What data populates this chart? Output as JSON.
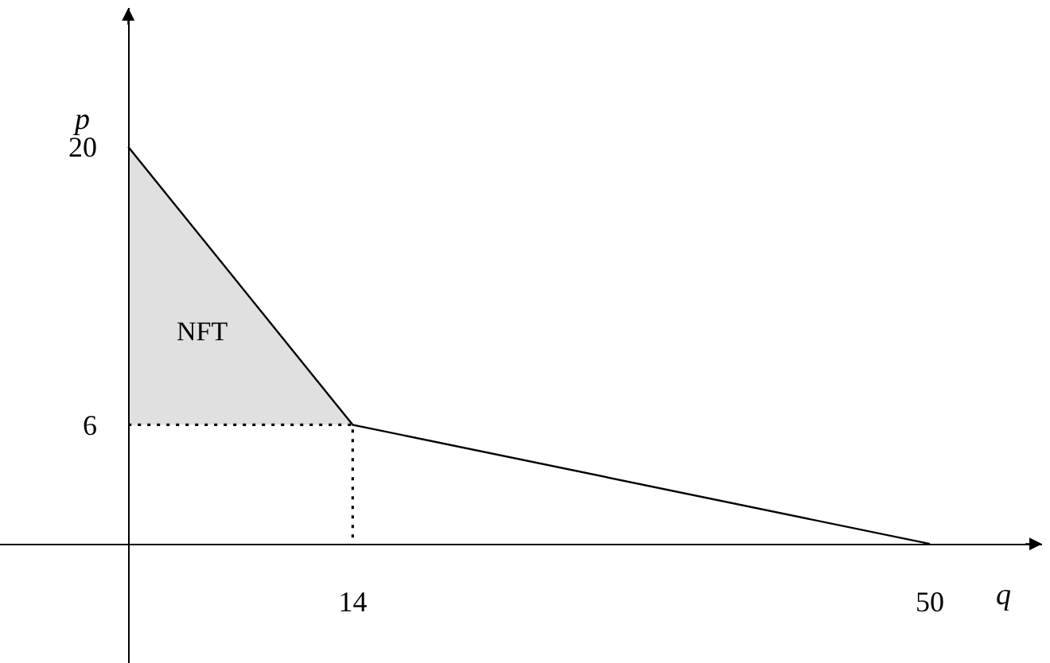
{
  "chart_data": {
    "type": "line",
    "xlabel": "q",
    "ylabel": "p",
    "x": [
      0,
      14,
      14,
      50
    ],
    "series": [
      {
        "color": "#000000",
        "values": [
          20,
          6,
          6,
          0
        ],
        "lower": [
          6,
          6,
          null,
          null
        ],
        "upper": [
          20,
          6,
          null,
          null
        ]
      },
      {
        "color": "#000000",
        "values": [
          6,
          6,
          0,
          null
        ],
        "line_style": "dotted"
      }
    ],
    "annotations": [
      "NFT"
    ],
    "xlim": [
      -8,
      57
    ],
    "ylim": [
      -6,
      27
    ],
    "xticks": [
      14,
      50
    ],
    "yticks": [
      6,
      20
    ]
  }
}
